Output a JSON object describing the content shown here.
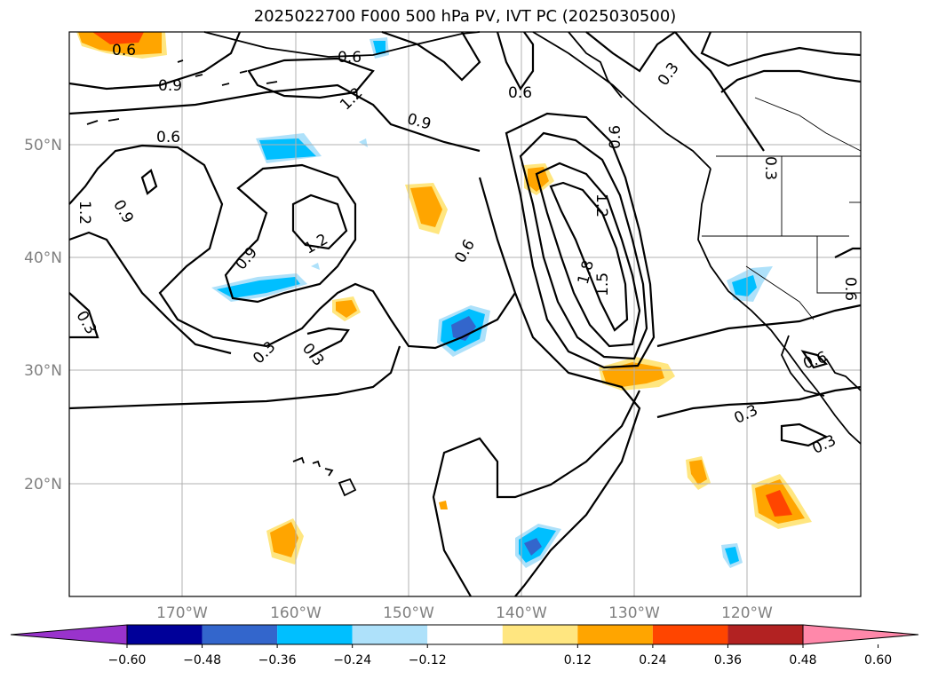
{
  "title": "2025022700 F000 500 hPa PV, IVT PC (2025030500)",
  "lat_labels": [
    "50°N",
    "40°N",
    "30°N",
    "20°N"
  ],
  "lon_labels": [
    "170°W",
    "160°W",
    "150°W",
    "140°W",
    "130°W",
    "120°W"
  ],
  "colorbar": {
    "colors": [
      "#9933cc",
      "#000099",
      "#3366cc",
      "#00bfff",
      "#aee1fa",
      "#ffffff",
      "#ffe680",
      "#ffa500",
      "#ff4500",
      "#b22222",
      "#ff88aa"
    ],
    "labels": [
      "−0.60",
      "−0.48",
      "−0.36",
      "−0.24",
      "−0.12",
      "0.12",
      "0.24",
      "0.36",
      "0.48",
      "0.60"
    ]
  },
  "contour_labels": [
    "0.6",
    "0.6",
    "0.9",
    "1.2",
    "0.9",
    "0.6",
    "0.6",
    "0.3",
    "0.6",
    "0.3",
    "1.2",
    "0.9",
    "1.2",
    "1.2",
    "0.9",
    "0.6",
    "1.8",
    "1.5",
    "0.3",
    "0.3",
    "0.3",
    "0.6",
    "0.3",
    "0.3",
    "0.6"
  ]
}
